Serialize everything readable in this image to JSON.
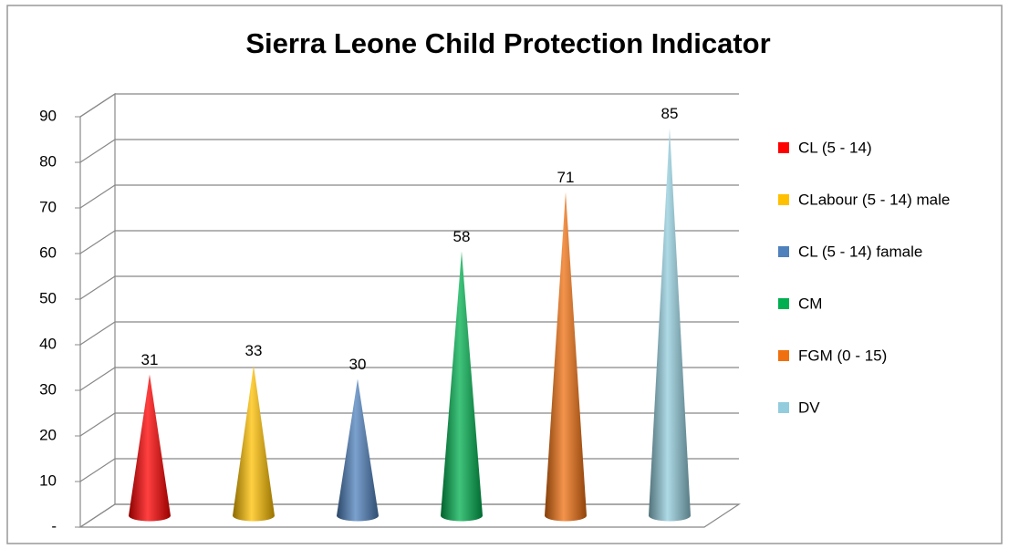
{
  "chart_data": {
    "type": "cone",
    "title": "Sierra Leone Child Protection Indicator",
    "categories": [
      "CL (5 - 14)",
      "CLabour (5 - 14) male",
      "CL (5 - 14) famale",
      "CM",
      "FGM (0 - 15)",
      "DV"
    ],
    "values": [
      31,
      33,
      30,
      58,
      71,
      85
    ],
    "colors": [
      "#ff0000",
      "#ffc000",
      "#4f81bd",
      "#00b050",
      "#f07010",
      "#93cddd"
    ],
    "ylim": [
      0,
      90
    ],
    "yticks": [
      {
        "value": 0,
        "label": "-"
      },
      10,
      20,
      30,
      40,
      50,
      60,
      70,
      80,
      90
    ],
    "grid": true,
    "legend": "right"
  }
}
